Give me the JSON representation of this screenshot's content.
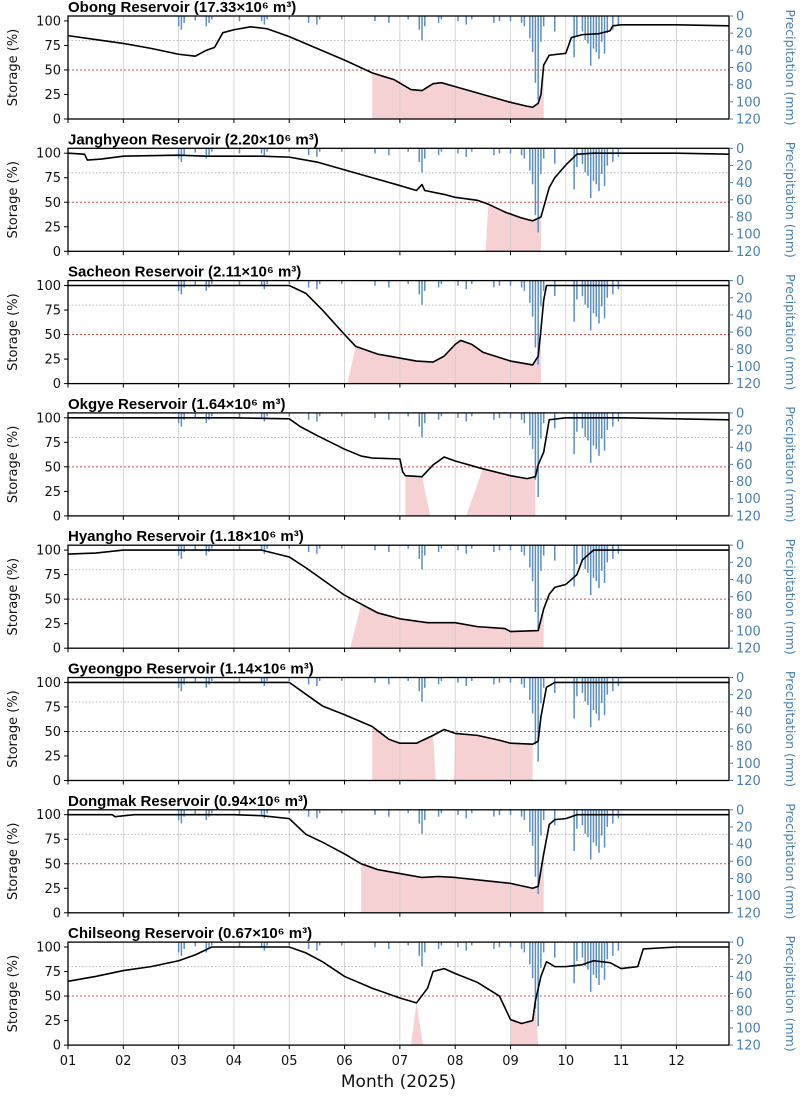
{
  "chart_data": {
    "type": "line",
    "xlabel": "Month (2025)",
    "ylabel": "Storage (%)",
    "y2label": "Precipitation (mm)",
    "x_ticks": [
      "01",
      "02",
      "03",
      "04",
      "05",
      "06",
      "07",
      "08",
      "09",
      "10",
      "11",
      "12"
    ],
    "x_range_month": [
      1,
      12.95
    ],
    "y_ticks": [
      0,
      25,
      50,
      75,
      100
    ],
    "y2_ticks": [
      0,
      20,
      40,
      60,
      80,
      100,
      120
    ],
    "ylim": [
      0,
      105
    ],
    "y2lim_inverted": [
      0,
      120
    ],
    "threshold_percent": 50,
    "grid": "vertical month lines + horizontal dotted line at 80% storage",
    "precipitation_bars": [
      [
        3.0,
        12
      ],
      [
        3.05,
        16
      ],
      [
        3.1,
        8
      ],
      [
        3.3,
        5
      ],
      [
        3.5,
        12
      ],
      [
        3.55,
        8
      ],
      [
        3.6,
        4
      ],
      [
        4.1,
        6
      ],
      [
        4.5,
        6
      ],
      [
        4.55,
        10
      ],
      [
        4.6,
        4
      ],
      [
        5.0,
        4
      ],
      [
        5.35,
        8
      ],
      [
        5.5,
        10
      ],
      [
        5.55,
        4
      ],
      [
        5.95,
        4
      ],
      [
        6.55,
        6
      ],
      [
        6.8,
        8
      ],
      [
        7.15,
        4
      ],
      [
        7.35,
        16
      ],
      [
        7.4,
        28
      ],
      [
        7.45,
        12
      ],
      [
        7.7,
        8
      ],
      [
        7.75,
        4
      ],
      [
        8.05,
        6
      ],
      [
        8.2,
        10
      ],
      [
        8.3,
        4
      ],
      [
        8.7,
        8
      ],
      [
        8.8,
        6
      ],
      [
        9.0,
        6
      ],
      [
        9.2,
        8
      ],
      [
        9.25,
        12
      ],
      [
        9.35,
        26
      ],
      [
        9.4,
        42
      ],
      [
        9.45,
        78
      ],
      [
        9.5,
        98
      ],
      [
        9.55,
        30
      ],
      [
        9.6,
        12
      ],
      [
        9.8,
        18
      ],
      [
        10.15,
        48
      ],
      [
        10.2,
        22
      ],
      [
        10.3,
        18
      ],
      [
        10.35,
        28
      ],
      [
        10.4,
        32
      ],
      [
        10.45,
        58
      ],
      [
        10.5,
        38
      ],
      [
        10.55,
        42
      ],
      [
        10.6,
        50
      ],
      [
        10.65,
        30
      ],
      [
        10.7,
        44
      ],
      [
        10.75,
        20
      ],
      [
        10.85,
        16
      ],
      [
        10.95,
        10
      ]
    ],
    "series": [
      {
        "name": "Obong Reservoir",
        "title": "Obong Reservoir  (17.33×10⁶ m³)",
        "capacity": "17.33×10⁶ m³",
        "storage": [
          [
            1.0,
            85
          ],
          [
            1.5,
            81
          ],
          [
            2.0,
            77
          ],
          [
            2.5,
            72
          ],
          [
            3.0,
            66
          ],
          [
            3.3,
            64
          ],
          [
            3.5,
            70
          ],
          [
            3.65,
            73
          ],
          [
            3.8,
            88
          ],
          [
            4.0,
            91
          ],
          [
            4.3,
            94
          ],
          [
            4.6,
            92
          ],
          [
            5.0,
            84
          ],
          [
            5.5,
            72
          ],
          [
            6.0,
            60
          ],
          [
            6.5,
            47
          ],
          [
            6.9,
            40
          ],
          [
            7.2,
            30
          ],
          [
            7.4,
            29
          ],
          [
            7.6,
            36
          ],
          [
            7.75,
            37
          ],
          [
            8.0,
            33
          ],
          [
            8.5,
            25
          ],
          [
            9.0,
            17
          ],
          [
            9.3,
            13
          ],
          [
            9.4,
            12
          ],
          [
            9.5,
            16
          ],
          [
            9.55,
            25
          ],
          [
            9.6,
            55
          ],
          [
            9.7,
            65
          ],
          [
            10.0,
            67
          ],
          [
            10.1,
            83
          ],
          [
            10.3,
            86
          ],
          [
            10.6,
            87
          ],
          [
            10.8,
            90
          ],
          [
            10.85,
            95
          ],
          [
            11.0,
            96
          ],
          [
            12.0,
            96
          ],
          [
            12.95,
            95
          ]
        ],
        "below_threshold": [
          [
            6.5,
            9.6
          ]
        ]
      },
      {
        "name": "Janghyeon Reservoir",
        "title": "Janghyeon Reservoir  (2.20×10⁶ m³)",
        "capacity": "2.20×10⁶ m³",
        "storage": [
          [
            1.0,
            100
          ],
          [
            1.3,
            99
          ],
          [
            1.35,
            93
          ],
          [
            1.6,
            94
          ],
          [
            2.0,
            97
          ],
          [
            3.0,
            98
          ],
          [
            3.5,
            97
          ],
          [
            4.0,
            97
          ],
          [
            4.5,
            97
          ],
          [
            5.0,
            96
          ],
          [
            5.5,
            91
          ],
          [
            6.0,
            83
          ],
          [
            6.5,
            75
          ],
          [
            7.0,
            67
          ],
          [
            7.3,
            62
          ],
          [
            7.4,
            68
          ],
          [
            7.45,
            62
          ],
          [
            7.8,
            58
          ],
          [
            8.0,
            55
          ],
          [
            8.4,
            52
          ],
          [
            8.6,
            48
          ],
          [
            8.9,
            40
          ],
          [
            9.2,
            34
          ],
          [
            9.4,
            31
          ],
          [
            9.55,
            35
          ],
          [
            9.6,
            45
          ],
          [
            9.7,
            65
          ],
          [
            9.8,
            75
          ],
          [
            10.0,
            88
          ],
          [
            10.2,
            99
          ],
          [
            10.5,
            100
          ],
          [
            11.0,
            100
          ],
          [
            12.0,
            100
          ],
          [
            12.95,
            99
          ]
        ],
        "below_threshold": [
          [
            8.55,
            9.55
          ]
        ]
      },
      {
        "name": "Sacheon Reservoir",
        "title": "Sacheon Reservoir  (2.11×10⁶ m³)",
        "capacity": "2.11×10⁶ m³",
        "storage": [
          [
            1.0,
            100
          ],
          [
            5.0,
            100
          ],
          [
            5.3,
            92
          ],
          [
            5.6,
            75
          ],
          [
            6.0,
            50
          ],
          [
            6.2,
            38
          ],
          [
            6.6,
            30
          ],
          [
            7.0,
            26
          ],
          [
            7.3,
            23
          ],
          [
            7.6,
            22
          ],
          [
            7.8,
            28
          ],
          [
            8.0,
            40
          ],
          [
            8.1,
            44
          ],
          [
            8.3,
            40
          ],
          [
            8.5,
            32
          ],
          [
            9.0,
            23
          ],
          [
            9.4,
            19
          ],
          [
            9.5,
            28
          ],
          [
            9.55,
            55
          ],
          [
            9.6,
            85
          ],
          [
            9.65,
            100
          ],
          [
            12.95,
            100
          ]
        ],
        "below_threshold": [
          [
            6.05,
            9.55
          ]
        ]
      },
      {
        "name": "Okgye Reservoir",
        "title": "Okgye Reservoir  (1.64×10⁶ m³)",
        "capacity": "1.64×10⁶ m³",
        "storage": [
          [
            1.0,
            100
          ],
          [
            3.0,
            100
          ],
          [
            4.0,
            100
          ],
          [
            5.0,
            99
          ],
          [
            5.2,
            91
          ],
          [
            5.5,
            82
          ],
          [
            6.0,
            68
          ],
          [
            6.3,
            61
          ],
          [
            6.5,
            59
          ],
          [
            7.0,
            58
          ],
          [
            7.05,
            45
          ],
          [
            7.1,
            41
          ],
          [
            7.4,
            40
          ],
          [
            7.6,
            52
          ],
          [
            7.8,
            60
          ],
          [
            8.0,
            56
          ],
          [
            8.5,
            48
          ],
          [
            9.0,
            41
          ],
          [
            9.3,
            38
          ],
          [
            9.45,
            40
          ],
          [
            9.5,
            52
          ],
          [
            9.6,
            65
          ],
          [
            9.7,
            98
          ],
          [
            10.0,
            100
          ],
          [
            11.0,
            100
          ],
          [
            12.95,
            98
          ]
        ],
        "below_threshold": [
          [
            7.1,
            7.55
          ],
          [
            8.2,
            9.45
          ]
        ]
      },
      {
        "name": "Hyangho Reservoir",
        "title": "Hyangho Reservoir  (1.18×10⁶ m³)",
        "capacity": "1.18×10⁶ m³",
        "storage": [
          [
            1.0,
            96
          ],
          [
            1.5,
            97
          ],
          [
            2.0,
            100
          ],
          [
            4.0,
            100
          ],
          [
            4.5,
            100
          ],
          [
            5.0,
            93
          ],
          [
            5.3,
            82
          ],
          [
            5.6,
            70
          ],
          [
            6.0,
            54
          ],
          [
            6.3,
            45
          ],
          [
            6.6,
            36
          ],
          [
            7.0,
            30
          ],
          [
            7.5,
            26
          ],
          [
            8.0,
            26
          ],
          [
            8.4,
            22
          ],
          [
            8.9,
            20
          ],
          [
            9.0,
            17
          ],
          [
            9.5,
            18
          ],
          [
            9.6,
            40
          ],
          [
            9.7,
            55
          ],
          [
            9.8,
            62
          ],
          [
            10.0,
            65
          ],
          [
            10.2,
            75
          ],
          [
            10.3,
            90
          ],
          [
            10.5,
            100
          ],
          [
            11.0,
            100
          ],
          [
            12.95,
            100
          ]
        ],
        "below_threshold": [
          [
            6.1,
            9.6
          ]
        ]
      },
      {
        "name": "Gyeongpo Reservoir",
        "title": "Gyeongpo Reservoir  (1.14×10⁶ m³)",
        "capacity": "1.14×10⁶ m³",
        "storage": [
          [
            1.0,
            100
          ],
          [
            5.0,
            100
          ],
          [
            5.3,
            88
          ],
          [
            5.6,
            76
          ],
          [
            6.0,
            67
          ],
          [
            6.5,
            55
          ],
          [
            6.8,
            42
          ],
          [
            7.0,
            38
          ],
          [
            7.3,
            38
          ],
          [
            7.6,
            46
          ],
          [
            7.8,
            52
          ],
          [
            8.0,
            48
          ],
          [
            8.4,
            46
          ],
          [
            8.8,
            41
          ],
          [
            9.0,
            38
          ],
          [
            9.4,
            37
          ],
          [
            9.5,
            40
          ],
          [
            9.55,
            65
          ],
          [
            9.65,
            95
          ],
          [
            9.8,
            100
          ],
          [
            12.95,
            100
          ]
        ],
        "below_threshold": [
          [
            6.5,
            7.65
          ],
          [
            7.98,
            9.4
          ]
        ]
      },
      {
        "name": "Dongmak Reservoir",
        "title": "Dongmak Reservoir  (0.94×10⁶ m³)",
        "capacity": "0.94×10⁶ m³",
        "storage": [
          [
            1.0,
            100
          ],
          [
            1.8,
            100
          ],
          [
            1.85,
            98
          ],
          [
            2.2,
            100
          ],
          [
            3.0,
            100
          ],
          [
            4.0,
            100
          ],
          [
            4.5,
            99
          ],
          [
            5.0,
            96
          ],
          [
            5.3,
            80
          ],
          [
            5.6,
            72
          ],
          [
            6.0,
            60
          ],
          [
            6.3,
            50
          ],
          [
            6.6,
            44
          ],
          [
            7.0,
            40
          ],
          [
            7.4,
            36
          ],
          [
            7.7,
            37
          ],
          [
            8.0,
            36
          ],
          [
            8.5,
            33
          ],
          [
            9.0,
            30
          ],
          [
            9.4,
            25
          ],
          [
            9.5,
            27
          ],
          [
            9.6,
            60
          ],
          [
            9.7,
            90
          ],
          [
            9.8,
            95
          ],
          [
            10.0,
            96
          ],
          [
            10.2,
            100
          ],
          [
            11.0,
            100
          ],
          [
            12.95,
            100
          ]
        ],
        "below_threshold": [
          [
            6.3,
            9.6
          ]
        ]
      },
      {
        "name": "Chilseong Reservoir",
        "title": "Chilseong Reservoir  (0.67×10⁶ m³)",
        "capacity": "0.67×10⁶ m³",
        "storage": [
          [
            1.0,
            65
          ],
          [
            1.5,
            70
          ],
          [
            2.0,
            76
          ],
          [
            2.5,
            80
          ],
          [
            3.0,
            86
          ],
          [
            3.3,
            92
          ],
          [
            3.6,
            100
          ],
          [
            4.0,
            100
          ],
          [
            5.0,
            100
          ],
          [
            5.3,
            94
          ],
          [
            5.6,
            85
          ],
          [
            6.0,
            70
          ],
          [
            6.5,
            58
          ],
          [
            7.0,
            48
          ],
          [
            7.3,
            43
          ],
          [
            7.5,
            58
          ],
          [
            7.6,
            75
          ],
          [
            7.8,
            78
          ],
          [
            8.0,
            73
          ],
          [
            8.4,
            64
          ],
          [
            8.8,
            50
          ],
          [
            9.0,
            26
          ],
          [
            9.2,
            22
          ],
          [
            9.4,
            25
          ],
          [
            9.45,
            45
          ],
          [
            9.55,
            70
          ],
          [
            9.65,
            85
          ],
          [
            9.8,
            80
          ],
          [
            10.0,
            80
          ],
          [
            10.3,
            82
          ],
          [
            10.5,
            86
          ],
          [
            10.8,
            84
          ],
          [
            11.0,
            78
          ],
          [
            11.3,
            80
          ],
          [
            11.4,
            98
          ],
          [
            12.0,
            100
          ],
          [
            12.95,
            100
          ]
        ],
        "below_threshold": [
          [
            7.2,
            7.42
          ],
          [
            9.0,
            9.5
          ]
        ]
      }
    ]
  }
}
